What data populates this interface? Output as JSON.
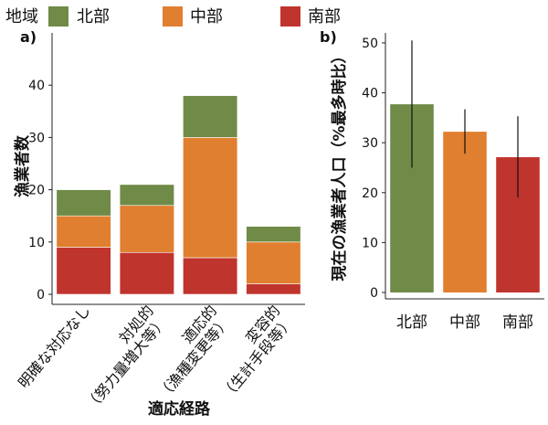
{
  "legend": {
    "title": "地域",
    "items": [
      {
        "label": "北部",
        "color": "#6f8b47"
      },
      {
        "label": "中部",
        "color": "#e07f2f"
      },
      {
        "label": "南部",
        "color": "#c0342e"
      }
    ]
  },
  "chart_data": [
    {
      "type": "bar",
      "stacked": true,
      "panel_label": "a)",
      "title": "",
      "xlabel": "適応経路",
      "ylabel": "漁業者数",
      "ylim": [
        0,
        50
      ],
      "yticks": [
        0,
        10,
        20,
        30,
        40
      ],
      "categories": [
        {
          "line1": "明確な対応なし",
          "line2": ""
        },
        {
          "line1": "対処的",
          "line2": "（努力量増大等）"
        },
        {
          "line1": "適応的",
          "line2": "（漁種変更等）"
        },
        {
          "line1": "変容的",
          "line2": "（生計手段等）"
        }
      ],
      "series": [
        {
          "name": "南部",
          "values": [
            9,
            8,
            7,
            2
          ]
        },
        {
          "name": "中部",
          "values": [
            6,
            9,
            23,
            8
          ]
        },
        {
          "name": "北部",
          "values": [
            5,
            4,
            8,
            3
          ]
        }
      ],
      "totals": [
        20,
        21,
        38,
        13
      ]
    },
    {
      "type": "bar",
      "panel_label": "b)",
      "title": "",
      "xlabel": "",
      "ylabel": "現在の漁業者人口（%最多時比）",
      "ylim": [
        0,
        52
      ],
      "yticks": [
        0,
        10,
        20,
        30,
        40,
        50
      ],
      "categories": [
        "北部",
        "中部",
        "南部"
      ],
      "values": [
        37.7,
        32.2,
        27.1
      ],
      "error_low": [
        25,
        27.8,
        19
      ],
      "error_high": [
        50.5,
        36.7,
        35.3
      ]
    }
  ]
}
